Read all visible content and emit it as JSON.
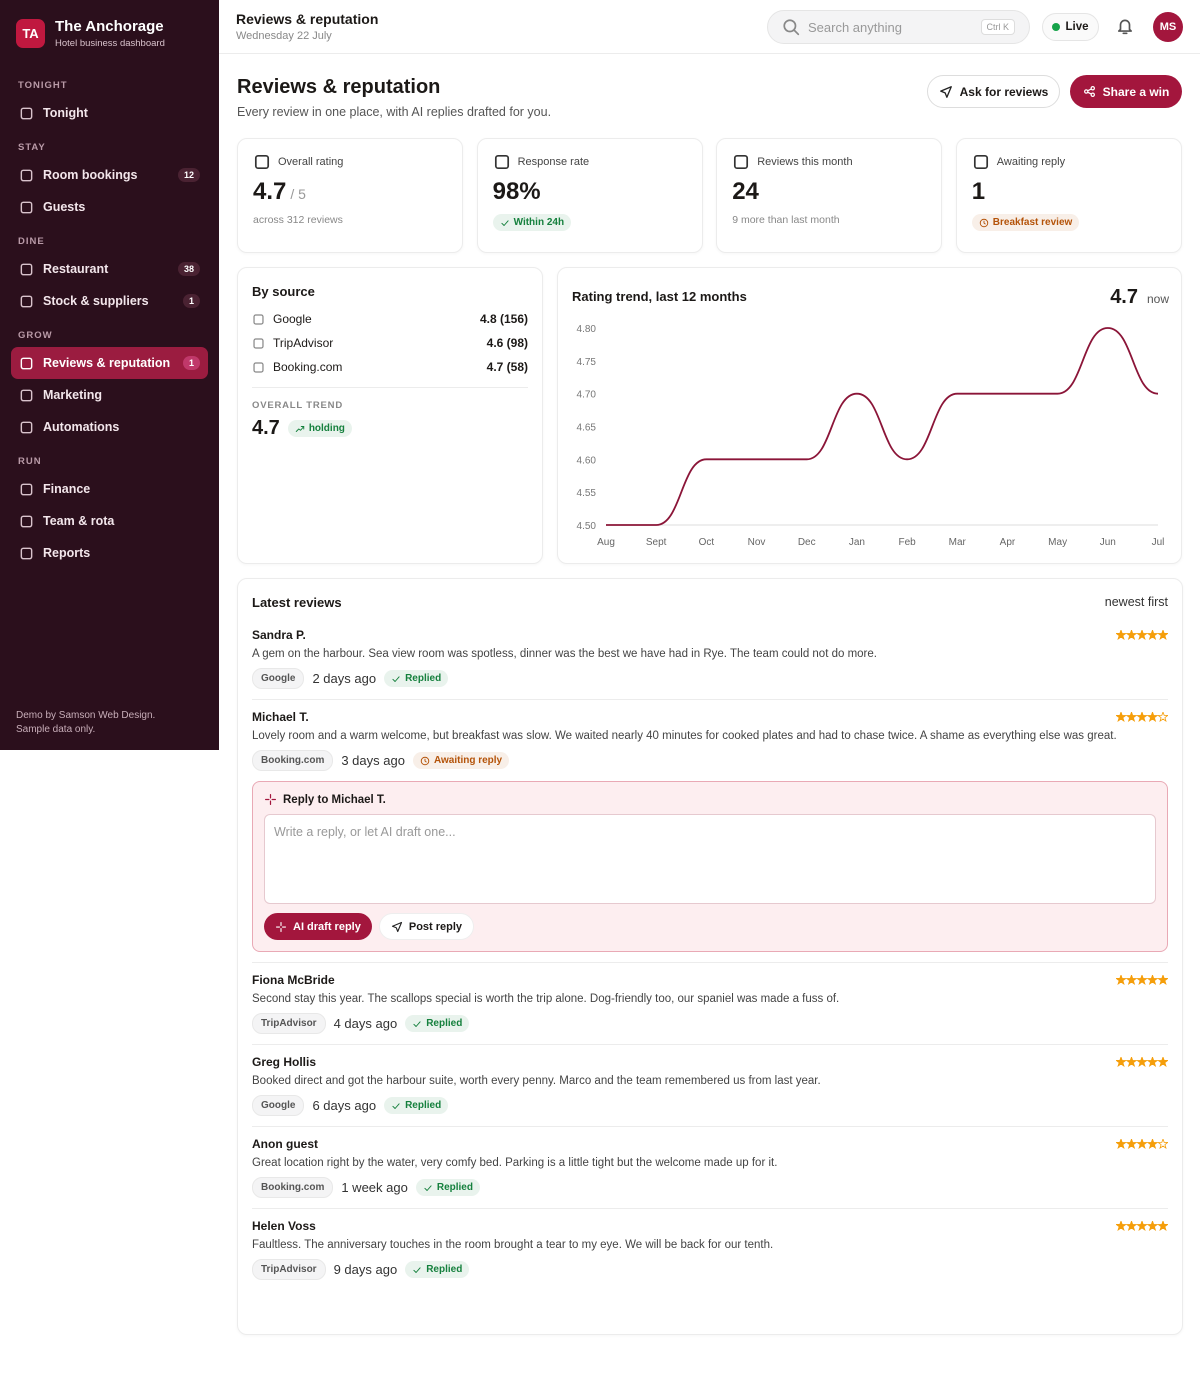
{
  "sidebar": {
    "logo": "TA",
    "brand": "The Anchorage",
    "tagline": "Hotel business dashboard",
    "sections": [
      {
        "title": "TONIGHT",
        "items": [
          {
            "label": "Tonight"
          }
        ]
      },
      {
        "title": "STAY",
        "items": [
          {
            "label": "Room bookings",
            "badge": 12
          },
          {
            "label": "Guests"
          }
        ]
      },
      {
        "title": "DINE",
        "items": [
          {
            "label": "Restaurant",
            "badge": 38
          },
          {
            "label": "Stock & suppliers",
            "badge": 1
          }
        ]
      },
      {
        "title": "GROW",
        "items": [
          {
            "label": "Reviews & reputation",
            "badge": 1,
            "active": true
          },
          {
            "label": "Marketing"
          },
          {
            "label": "Automations"
          }
        ]
      },
      {
        "title": "RUN",
        "items": [
          {
            "label": "Finance"
          },
          {
            "label": "Team & rota"
          },
          {
            "label": "Reports"
          }
        ]
      }
    ],
    "footer": [
      "Demo by Samson Web Design.",
      "Sample data only."
    ]
  },
  "topbar": {
    "title": "Reviews & reputation",
    "date": "Wednesday 22 July",
    "search": "Search anything",
    "shortcut": "Ctrl K",
    "status": "Live",
    "avatar": "MS"
  },
  "page": {
    "title": "Reviews & reputation",
    "subtitle": "Every review in one place, with AI replies drafted for you.",
    "actions": [
      "Ask for reviews",
      "Share a win"
    ]
  },
  "stats": [
    {
      "label": "Overall rating",
      "value": "4.7",
      "suffix": "/ 5",
      "note": "across 312 reviews"
    },
    {
      "label": "Response rate",
      "value": "98%",
      "badge": "Within 24h",
      "badge_color": "#15803d"
    },
    {
      "label": "Reviews this month",
      "value": "24",
      "note": "9 more than last month"
    },
    {
      "label": "Awaiting reply",
      "value": "1",
      "badge": "Breakfast review",
      "badge_color": "#b45309"
    }
  ],
  "sources": {
    "title": "By source",
    "rows": [
      {
        "name": "Google",
        "score": "4.8 (156)"
      },
      {
        "name": "TripAdvisor",
        "score": "4.6 (98)"
      },
      {
        "name": "Booking.com",
        "score": "4.7 (58)"
      }
    ],
    "trend_label": "OVERALL TREND",
    "trend_value": "4.7",
    "trend_badge": "holding"
  },
  "chart_data": {
    "type": "line",
    "title": "Rating trend, last 12 months",
    "current": "4.7",
    "current_label": "now",
    "categories": [
      "Aug",
      "Sept",
      "Oct",
      "Nov",
      "Dec",
      "Jan",
      "Feb",
      "Mar",
      "Apr",
      "May",
      "Jun",
      "Jul"
    ],
    "values": [
      4.5,
      4.5,
      4.6,
      4.6,
      4.6,
      4.7,
      4.6,
      4.7,
      4.7,
      4.7,
      4.8,
      4.7
    ],
    "color": "#8b1538",
    "ylim": [
      4.5,
      4.8
    ],
    "yticks": [
      {
        "value": 4.5,
        "label": "4.50"
      },
      {
        "value": 4.55,
        "label": "4.55"
      },
      {
        "value": 4.6,
        "label": "4.60"
      },
      {
        "value": 4.65,
        "label": "4.65"
      },
      {
        "value": 4.7,
        "label": "4.70"
      },
      {
        "value": 4.75,
        "label": "4.75"
      },
      {
        "value": 4.8,
        "label": "4.80"
      }
    ],
    "grid": false
  },
  "reviews": {
    "title": "Latest reviews",
    "sort": "newest first",
    "items": [
      {
        "author": "Sandra P.",
        "rating": 5,
        "text": "A gem on the harbour. Sea view room was spotless, dinner was the best we have had in Rye. The team could not do more.",
        "source": "Google",
        "time": "2 days ago",
        "status": "Replied",
        "status_color": "#15803d"
      },
      {
        "author": "Michael T.",
        "rating": 4,
        "text": "Lovely room and a warm welcome, but breakfast was slow. We waited nearly 40 minutes for cooked plates and had to chase twice. A shame as everything else was great.",
        "source": "Booking.com",
        "time": "3 days ago",
        "status": "Awaiting reply",
        "status_color": "#b45309",
        "reply": {
          "title": "Reply to Michael T.",
          "placeholder": "Write a reply, or let AI draft one...",
          "buttons": [
            "AI draft reply",
            "Post reply"
          ]
        }
      },
      {
        "author": "Fiona McBride",
        "rating": 5,
        "text": "Second stay this year. The scallops special is worth the trip alone. Dog-friendly too, our spaniel was made a fuss of.",
        "source": "TripAdvisor",
        "time": "4 days ago",
        "status": "Replied",
        "status_color": "#15803d"
      },
      {
        "author": "Greg Hollis",
        "rating": 5,
        "text": "Booked direct and got the harbour suite, worth every penny. Marco and the team remembered us from last year.",
        "source": "Google",
        "time": "6 days ago",
        "status": "Replied",
        "status_color": "#15803d"
      },
      {
        "author": "Anon guest",
        "rating": 4,
        "text": "Great location right by the water, very comfy bed. Parking is a little tight but the welcome made up for it.",
        "source": "Booking.com",
        "time": "1 week ago",
        "status": "Replied",
        "status_color": "#15803d"
      },
      {
        "author": "Helen Voss",
        "rating": 5,
        "text": "Faultless. The anniversary touches in the room brought a tear to my eye. We will be back for our tenth.",
        "source": "TripAdvisor",
        "time": "9 days ago",
        "status": "Replied",
        "status_color": "#15803d"
      }
    ]
  }
}
